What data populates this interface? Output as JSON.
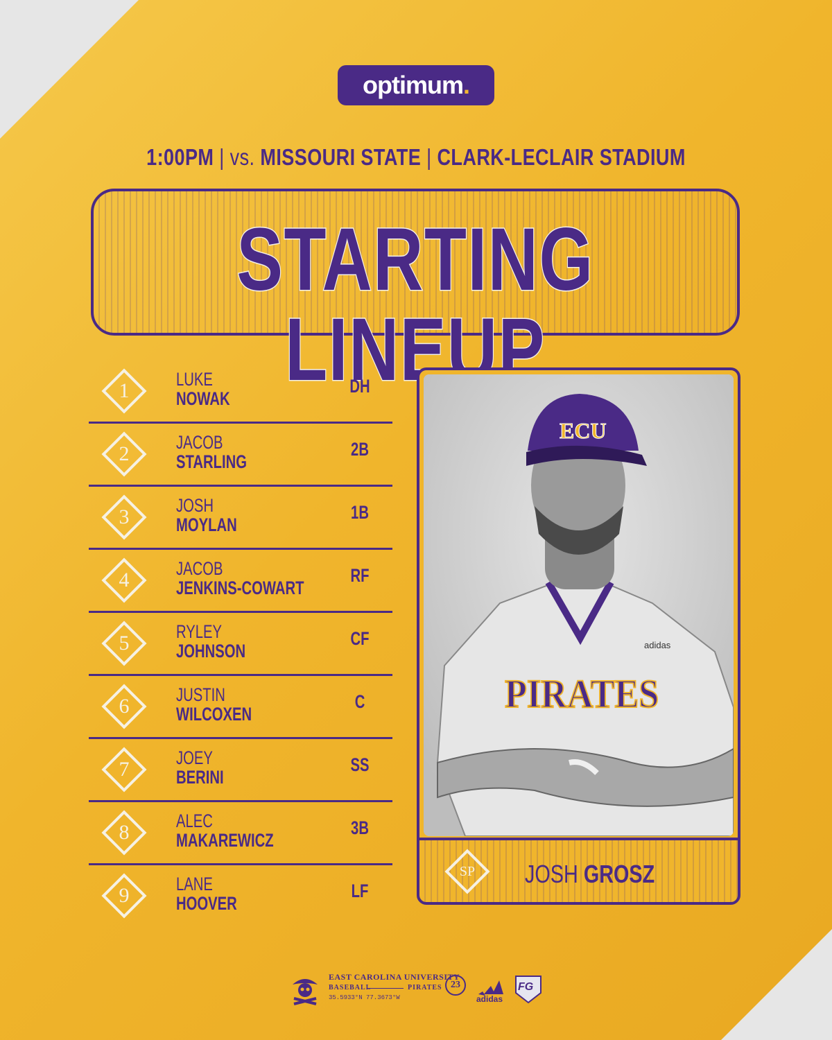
{
  "sponsor": {
    "name": "optimum",
    "dot": "."
  },
  "game": {
    "time": "1:00PM",
    "sep1": " | ",
    "vs": "vs.",
    "opponent": " MISSOURI STATE",
    "sep2": " | ",
    "venue": "CLARK-LECLAIR STADIUM"
  },
  "title": "STARTING LINEUP",
  "lineup": [
    {
      "num": "1",
      "first": "LUKE",
      "last": "NOWAK",
      "pos": "DH"
    },
    {
      "num": "2",
      "first": "JACOB",
      "last": "STARLING",
      "pos": "2B"
    },
    {
      "num": "3",
      "first": "JOSH",
      "last": "MOYLAN",
      "pos": "1B"
    },
    {
      "num": "4",
      "first": "JACOB",
      "last": "JENKINS-COWART",
      "pos": "RF"
    },
    {
      "num": "5",
      "first": "RYLEY",
      "last": "JOHNSON",
      "pos": "CF"
    },
    {
      "num": "6",
      "first": "JUSTIN",
      "last": "WILCOXEN",
      "pos": "C"
    },
    {
      "num": "7",
      "first": "JOEY",
      "last": "BERINI",
      "pos": "SS"
    },
    {
      "num": "8",
      "first": "ALEC",
      "last": "MAKAREWICZ",
      "pos": "3B"
    },
    {
      "num": "9",
      "first": "LANE",
      "last": "HOOVER",
      "pos": "LF"
    }
  ],
  "pitcher": {
    "label": "SP",
    "first": "JOSH ",
    "last": "GROSZ",
    "cap_text": "ECU",
    "jersey_text": "PIRATES",
    "brand": "adidas"
  },
  "footer": {
    "university": "EAST CAROLINA UNIVERSITY",
    "sport": "BASEBALL",
    "team": "PIRATES",
    "coords": "35.5933°N 77.3673°W",
    "badge": "23",
    "brand": "adidas",
    "partner": "FG"
  },
  "colors": {
    "gold": "#f0b52c",
    "purple": "#4a2a86",
    "cream": "#f6f1e4"
  }
}
